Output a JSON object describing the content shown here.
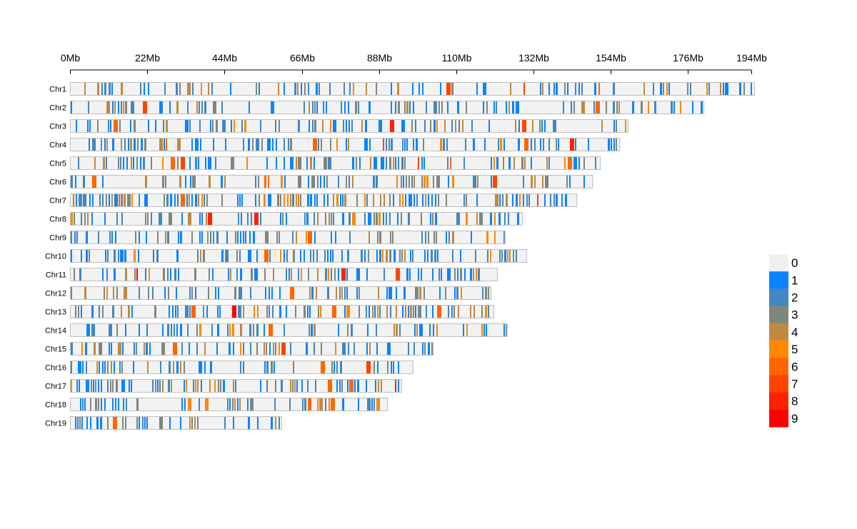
{
  "chart_data": {
    "type": "heatmap",
    "title": "",
    "subtitle": "",
    "xlabel": "",
    "ylabel": "",
    "x_unit": "Mb",
    "xlim": [
      0,
      194
    ],
    "x_ticks": [
      0,
      22,
      44,
      66,
      88,
      110,
      132,
      154,
      176,
      194
    ],
    "x_tick_labels": [
      "0Mb",
      "22Mb",
      "44Mb",
      "66Mb",
      "88Mb",
      "110Mb",
      "132Mb",
      "154Mb",
      "176Mb",
      "194Mb"
    ],
    "grid": false,
    "legend": {
      "placement": "right",
      "title": "",
      "levels": [
        {
          "label": "0",
          "color": "#F0F0F0"
        },
        {
          "label": "1",
          "color": "#0A84FF"
        },
        {
          "label": "2",
          "color": "#4287C0"
        },
        {
          "label": "3",
          "color": "#7F877C"
        },
        {
          "label": "4",
          "color": "#C08940"
        },
        {
          "label": "5",
          "color": "#FF8800"
        },
        {
          "label": "6",
          "color": "#FF6600"
        },
        {
          "label": "7",
          "color": "#FF4400"
        },
        {
          "label": "8",
          "color": "#FF2200"
        },
        {
          "label": "9",
          "color": "#FF0000"
        }
      ]
    },
    "chromosomes": [
      {
        "name": "Chr1",
        "length_mb": 195.0,
        "density": 0.45
      },
      {
        "name": "Chr2",
        "length_mb": 180.6,
        "density": 0.5
      },
      {
        "name": "Chr3",
        "length_mb": 159.0,
        "density": 0.45
      },
      {
        "name": "Chr4",
        "length_mb": 156.6,
        "density": 0.52
      },
      {
        "name": "Chr5",
        "length_mb": 151.1,
        "density": 0.55
      },
      {
        "name": "Chr6",
        "length_mb": 148.9,
        "density": 0.5
      },
      {
        "name": "Chr7",
        "length_mb": 144.4,
        "density": 0.6
      },
      {
        "name": "Chr8",
        "length_mb": 128.9,
        "density": 0.55
      },
      {
        "name": "Chr9",
        "length_mb": 124.0,
        "density": 0.52
      },
      {
        "name": "Chr10",
        "length_mb": 130.1,
        "density": 0.5
      },
      {
        "name": "Chr11",
        "length_mb": 121.8,
        "density": 0.55
      },
      {
        "name": "Chr12",
        "length_mb": 120.0,
        "density": 0.45
      },
      {
        "name": "Chr13",
        "length_mb": 120.8,
        "density": 0.48
      },
      {
        "name": "Chr14",
        "length_mb": 124.6,
        "density": 0.48
      },
      {
        "name": "Chr15",
        "length_mb": 103.5,
        "density": 0.48
      },
      {
        "name": "Chr16",
        "length_mb": 97.8,
        "density": 0.45
      },
      {
        "name": "Chr17",
        "length_mb": 94.5,
        "density": 0.5
      },
      {
        "name": "Chr18",
        "length_mb": 90.5,
        "density": 0.45
      },
      {
        "name": "Chr19",
        "length_mb": 60.4,
        "density": 0.55
      }
    ],
    "chromosome_background": "#F2F2F2",
    "chromosome_border": "#BEBEBE"
  }
}
